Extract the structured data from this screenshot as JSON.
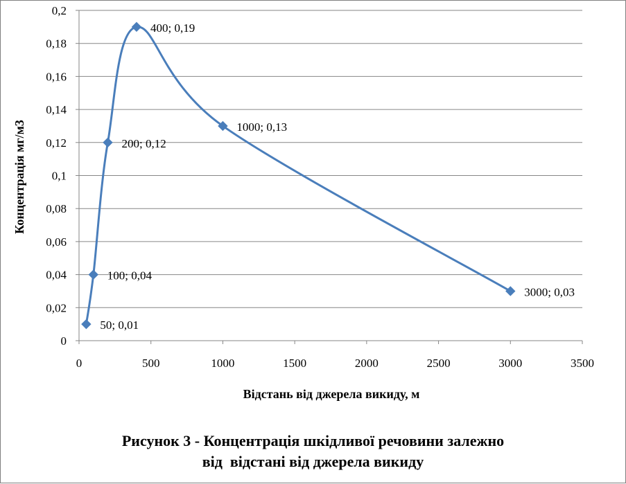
{
  "caption": {
    "line1": "Рисунок 3 - Концентрація шкідливої речовини залежно",
    "line2": "від  відстані від джерела викиду"
  },
  "chart_data": {
    "type": "scatter",
    "smooth_line": true,
    "markers": "diamond",
    "grid": "horizontal",
    "legend": "none",
    "xlabel": "Відстань від джерела викиду, м",
    "ylabel": "Концентрація мг/м3",
    "xlim": [
      0,
      3500
    ],
    "ylim": [
      0,
      0.2
    ],
    "x_ticks": [
      "0",
      "500",
      "1000",
      "1500",
      "2000",
      "2500",
      "3000",
      "3500"
    ],
    "y_ticks": [
      "0",
      "0,02",
      "0,04",
      "0,06",
      "0,08",
      "0,1",
      "0,12",
      "0,14",
      "0,16",
      "0,18",
      "0,2"
    ],
    "series_color": "#4a7ebb",
    "series": [
      {
        "x": [
          50,
          100,
          200,
          400,
          1000,
          3000
        ],
        "y": [
          0.01,
          0.04,
          0.12,
          0.19,
          0.13,
          0.03
        ],
        "labels": [
          "50; 0,01",
          "100; 0,04",
          "200; 0,12",
          "400; 0,19",
          "1000; 0,13",
          "3000; 0,03"
        ]
      }
    ]
  }
}
